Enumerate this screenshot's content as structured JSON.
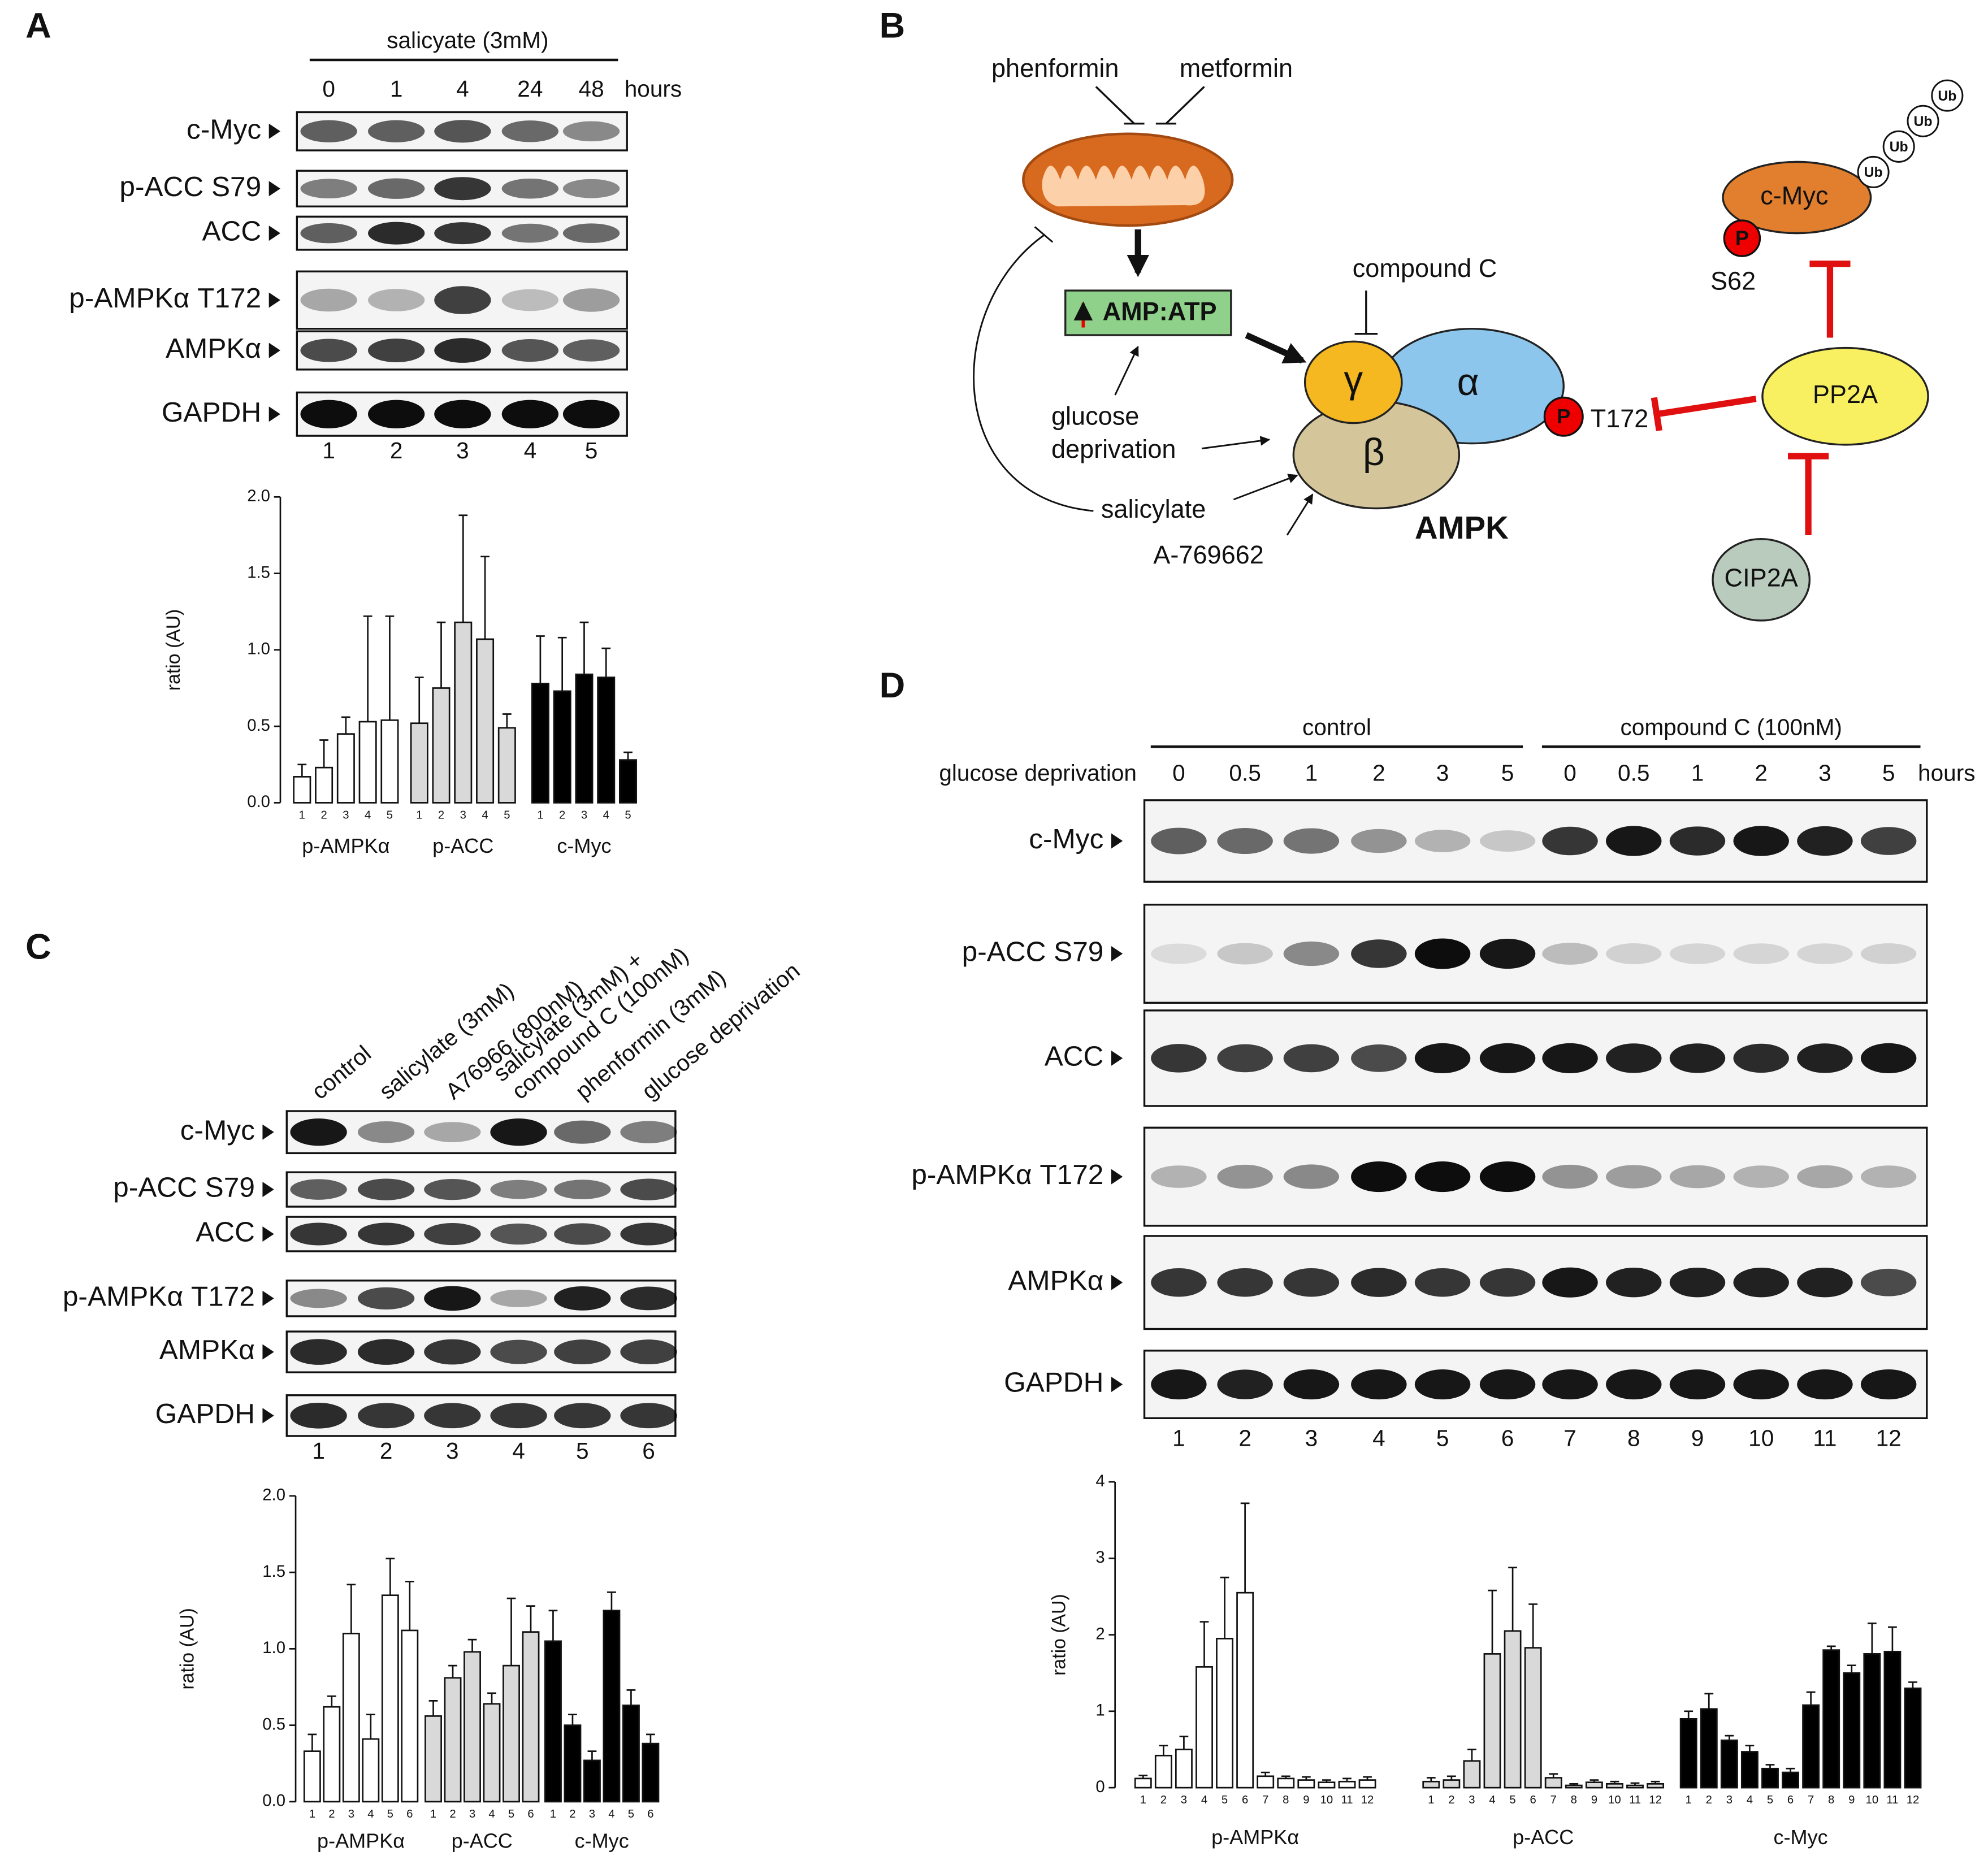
{
  "panel_labels": [
    "A",
    "B",
    "C",
    "D"
  ],
  "blots": {
    "A": {
      "treatment": "salicyate (3mM)",
      "timepoints": [
        "0",
        "1",
        "4",
        "24",
        "48"
      ],
      "unit": "hours",
      "rows": [
        "c-Myc",
        "p-ACC S79",
        "ACC",
        "p-AMPKα T172",
        "AMPKα",
        "GAPDH"
      ],
      "lanes": [
        "1",
        "2",
        "3",
        "4",
        "5"
      ]
    },
    "C": {
      "conditions": [
        [
          "control"
        ],
        [
          "salicylate (3mM)"
        ],
        [
          "A76966 (800nM)"
        ],
        [
          "salicylate (3mM) +",
          "compound C (100nM)"
        ],
        [
          "phenformin (3mM)"
        ],
        [
          "glucose deprivation"
        ]
      ],
      "rows": [
        "c-Myc",
        "p-ACC S79",
        "ACC",
        "p-AMPKα T172",
        "AMPKα",
        "GAPDH"
      ],
      "lanes": [
        "1",
        "2",
        "3",
        "4",
        "5",
        "6"
      ]
    },
    "D": {
      "groups": [
        "control",
        "compound C (100nM)"
      ],
      "condition": "glucose deprivation",
      "timepoints": [
        "0",
        "0.5",
        "1",
        "2",
        "3",
        "5",
        "0",
        "0.5",
        "1",
        "2",
        "3",
        "5"
      ],
      "unit": "hours",
      "rows": [
        "c-Myc",
        "p-ACC S79",
        "ACC",
        "p-AMPKα T172",
        "AMPKα",
        "GAPDH"
      ],
      "lanes": [
        "1",
        "2",
        "3",
        "4",
        "5",
        "6",
        "7",
        "8",
        "9",
        "10",
        "11",
        "12"
      ]
    }
  },
  "diagram": {
    "phenformin": "phenformin",
    "metformin": "metformin",
    "ratio": "AMP:ATP",
    "compound_c": "compound C",
    "glucose": [
      "glucose",
      "deprivation"
    ],
    "salicylate": "salicylate",
    "a769662": "A-769662",
    "gamma": "γ",
    "alpha": "α",
    "beta": "β",
    "phospho": "P",
    "t172": "T172",
    "ampk": "AMPK",
    "cmyc": "c-Myc",
    "s62": "S62",
    "ub": "Ub",
    "pp2a": "PP2A",
    "cip2a": "CIP2A"
  },
  "chart_data": [
    {
      "type": "bar",
      "ylabel": "ratio (AU)",
      "ylim": [
        0,
        2
      ],
      "yticks": [
        {
          "value": 0,
          "label": "0.0"
        },
        0.5,
        {
          "value": 1,
          "label": "1.0"
        },
        1.5,
        {
          "value": 2,
          "label": "2.0"
        }
      ],
      "categories": [
        "1",
        "2",
        "3",
        "4",
        "5"
      ],
      "series": [
        {
          "name": "p-AMPKα",
          "color": "#ffffff",
          "values": [
            0.17,
            0.23,
            0.45,
            0.53,
            0.54
          ],
          "errors": [
            0.08,
            0.18,
            0.11,
            0.69,
            0.68
          ]
        },
        {
          "name": "p-ACC",
          "color": "#d9d9d9",
          "values": [
            0.52,
            0.75,
            1.18,
            1.07,
            0.49
          ],
          "errors": [
            0.3,
            0.43,
            0.7,
            0.54,
            0.09
          ]
        },
        {
          "name": "c-Myc",
          "color": "#000000",
          "values": [
            0.78,
            0.73,
            0.84,
            0.82,
            0.28
          ],
          "errors": [
            0.31,
            0.35,
            0.34,
            0.19,
            0.05
          ]
        }
      ]
    },
    {
      "type": "bar",
      "ylabel": "ratio (AU)",
      "ylim": [
        0,
        2
      ],
      "yticks": [
        {
          "value": 0,
          "label": "0.0"
        },
        0.5,
        {
          "value": 1,
          "label": "1.0"
        },
        1.5,
        {
          "value": 2,
          "label": "2.0"
        }
      ],
      "categories": [
        "1",
        "2",
        "3",
        "4",
        "5",
        "6"
      ],
      "series": [
        {
          "name": "p-AMPKα",
          "color": "#ffffff",
          "values": [
            0.33,
            0.62,
            1.1,
            0.41,
            1.35,
            1.12
          ],
          "errors": [
            0.11,
            0.07,
            0.32,
            0.16,
            0.24,
            0.32
          ]
        },
        {
          "name": "p-ACC",
          "color": "#d9d9d9",
          "values": [
            0.56,
            0.81,
            0.98,
            0.64,
            0.89,
            1.11
          ],
          "errors": [
            0.1,
            0.08,
            0.08,
            0.07,
            0.44,
            0.17
          ]
        },
        {
          "name": "c-Myc",
          "color": "#000000",
          "values": [
            1.05,
            0.5,
            0.27,
            1.25,
            0.63,
            0.38
          ],
          "errors": [
            0.2,
            0.07,
            0.06,
            0.12,
            0.1,
            0.06
          ]
        }
      ]
    },
    {
      "type": "bar",
      "ylabel": "ratio (AU)",
      "ylim": [
        0,
        4
      ],
      "yticks": [
        0,
        1,
        2,
        3,
        4
      ],
      "categories": [
        "1",
        "2",
        "3",
        "4",
        "5",
        "6",
        "7",
        "8",
        "9",
        "10",
        "11",
        "12"
      ],
      "series": [
        {
          "name": "p-AMPKα",
          "color": "#ffffff",
          "values": [
            0.12,
            0.42,
            0.5,
            1.58,
            1.95,
            2.55,
            0.15,
            0.12,
            0.1,
            0.07,
            0.08,
            0.1
          ],
          "errors": [
            0.04,
            0.13,
            0.17,
            0.59,
            0.8,
            1.17,
            0.05,
            0.03,
            0.04,
            0.03,
            0.04,
            0.04
          ]
        },
        {
          "name": "p-ACC",
          "color": "#d9d9d9",
          "values": [
            0.08,
            0.1,
            0.35,
            1.75,
            2.05,
            1.83,
            0.13,
            0.03,
            0.07,
            0.05,
            0.03,
            0.05
          ],
          "errors": [
            0.05,
            0.05,
            0.15,
            0.83,
            0.83,
            0.57,
            0.05,
            0.02,
            0.03,
            0.03,
            0.03,
            0.03
          ]
        },
        {
          "name": "c-Myc",
          "color": "#000000",
          "values": [
            0.9,
            1.03,
            0.62,
            0.47,
            0.25,
            0.2,
            1.08,
            1.8,
            1.5,
            1.75,
            1.78,
            1.3
          ],
          "errors": [
            0.1,
            0.2,
            0.06,
            0.08,
            0.05,
            0.05,
            0.17,
            0.05,
            0.1,
            0.4,
            0.32,
            0.08
          ]
        }
      ]
    }
  ]
}
